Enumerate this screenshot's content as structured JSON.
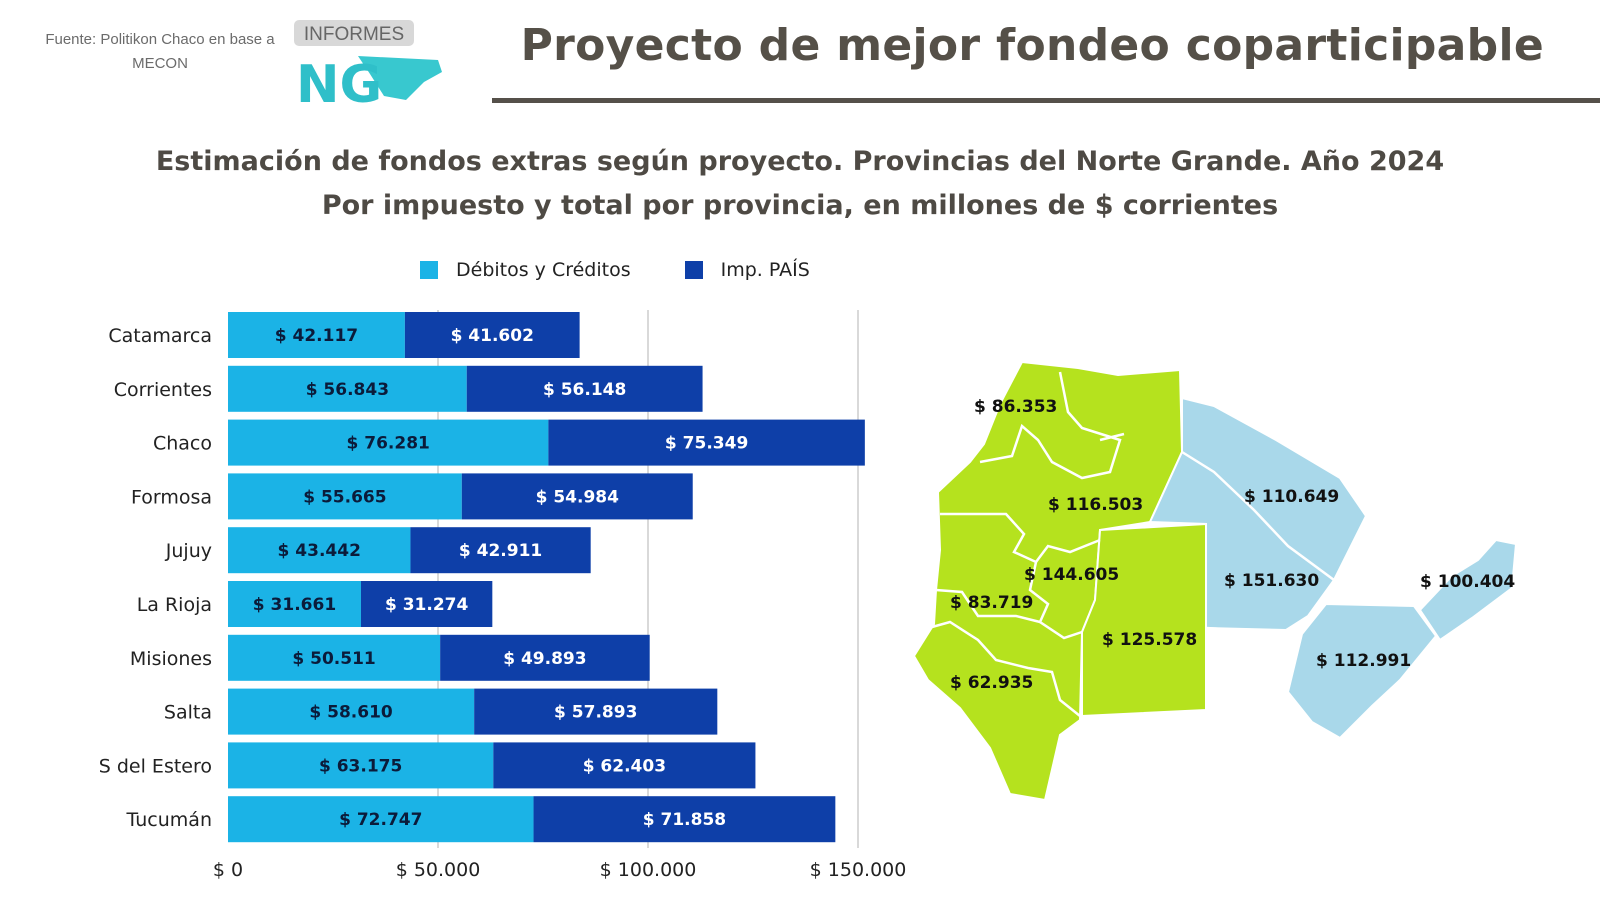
{
  "header": {
    "source": "Fuente: Politikon Chaco en base a MECON",
    "logo_text": "INFORMES",
    "logo_letters": "NG",
    "title": "Proyecto de mejor fondeo coparticipable"
  },
  "colors": {
    "debitos": "#1BB3E6",
    "pais": "#0E3FA8",
    "map_green": "#B5E21E",
    "map_light_blue": "#A9D8EA",
    "title_gray": "#555048"
  },
  "chart_data": {
    "type": "bar",
    "orientation": "horizontal",
    "stacked": true,
    "title": "Estimación de fondos extras según proyecto. Provincias del Norte Grande. Año 2024",
    "subtitle": "Por impuesto y total por provincia, en millones de $ corrientes",
    "categories": [
      "Catamarca",
      "Corrientes",
      "Chaco",
      "Formosa",
      "Jujuy",
      "La Rioja",
      "Misiones",
      "Salta",
      "S del Estero",
      "Tucumán"
    ],
    "series": [
      {
        "name": "Débitos y Créditos",
        "values": [
          42117,
          56843,
          76281,
          55665,
          43442,
          31661,
          50511,
          58610,
          63175,
          72747
        ],
        "labels": [
          "$ 42.117",
          "$ 56.843",
          "$ 76.281",
          "$ 55.665",
          "$ 43.442",
          "$ 31.661",
          "$ 50.511",
          "$ 58.610",
          "$ 63.175",
          "$ 72.747"
        ]
      },
      {
        "name": "Imp. PAÍS",
        "values": [
          41602,
          56148,
          75349,
          54984,
          42911,
          31274,
          49893,
          57893,
          62403,
          71858
        ],
        "labels": [
          "$ 41.602",
          "$ 56.148",
          "$ 75.349",
          "$ 54.984",
          "$ 42.911",
          "$ 31.274",
          "$ 49.893",
          "$ 57.893",
          "$ 62.403",
          "$ 71.858"
        ]
      }
    ],
    "xlim": [
      0,
      150000
    ],
    "xticks": [
      0,
      50000,
      100000,
      150000
    ],
    "xtick_labels": [
      "$ 0",
      "$ 50.000",
      "$ 100.000",
      "$ 150.000"
    ],
    "grid": "vertical",
    "legend_position": "top"
  },
  "map": {
    "labels": [
      "$ 86.353",
      "$ 116.503",
      "$ 110.649",
      "$ 144.605",
      "$ 151.630",
      "$ 100.404",
      "$ 83.719",
      "$ 125.578",
      "$ 112.991",
      "$ 62.935"
    ]
  }
}
